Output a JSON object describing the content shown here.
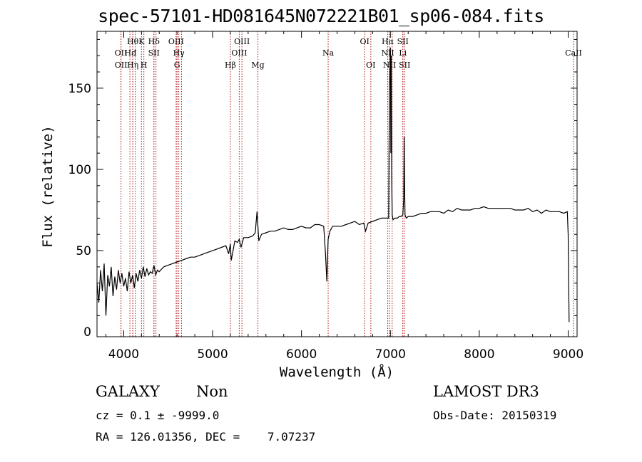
{
  "title": "spec-57101-HD081645N072221B01_sp06-084.fits",
  "info": {
    "class_label": "GALAXY",
    "subclass_label": "Non",
    "survey_label": "LAMOST DR3",
    "cz_line": "cz = 0.1 ± -9999.0",
    "obs_date_line": "Obs-Date: 20150319",
    "radec_line": "RA = 126.01356, DEC =    7.07237"
  },
  "chart_data": {
    "type": "line",
    "title": "spec-57101-HD081645N072221B01_sp06-084.fits",
    "xlabel": "Wavelength (Å)",
    "ylabel": "Flux (relative)",
    "xlim": [
      3700,
      9100
    ],
    "ylim": [
      -3,
      185
    ],
    "xticks": [
      4000,
      5000,
      6000,
      7000,
      8000,
      9000
    ],
    "yticks": [
      0,
      50,
      100,
      150
    ],
    "grid": false,
    "line_color": "#000000",
    "marker_color": "#b22222",
    "series": [
      {
        "x": [
          3700,
          3720,
          3740,
          3760,
          3780,
          3800,
          3820,
          3840,
          3860,
          3880,
          3900,
          3920,
          3940,
          3960,
          3980,
          4000,
          4020,
          4040,
          4060,
          4080,
          4100,
          4120,
          4140,
          4160,
          4180,
          4200,
          4220,
          4240,
          4260,
          4280,
          4300,
          4320,
          4340,
          4360,
          4380,
          4400,
          4450,
          4500,
          4550,
          4600,
          4650,
          4700,
          4750,
          4800,
          4850,
          4900,
          4950,
          5000,
          5050,
          5100,
          5150,
          5180,
          5200,
          5210,
          5250,
          5280,
          5300,
          5320,
          5350,
          5400,
          5450,
          5480,
          5500,
          5520,
          5550,
          5600,
          5650,
          5700,
          5750,
          5800,
          5850,
          5900,
          5950,
          6000,
          6050,
          6100,
          6150,
          6200,
          6250,
          6270,
          6285,
          6300,
          6320,
          6350,
          6400,
          6450,
          6500,
          6550,
          6600,
          6650,
          6700,
          6720,
          6750,
          6800,
          6850,
          6900,
          6950,
          6980,
          6985,
          6990,
          7000,
          7005,
          7010,
          7015,
          7020,
          7030,
          7050,
          7080,
          7100,
          7120,
          7140,
          7150,
          7155,
          7160,
          7165,
          7170,
          7180,
          7200,
          7250,
          7300,
          7350,
          7400,
          7450,
          7500,
          7550,
          7600,
          7650,
          7700,
          7750,
          7800,
          7850,
          7900,
          7950,
          8000,
          8050,
          8100,
          8150,
          8200,
          8250,
          8300,
          8350,
          8400,
          8450,
          8500,
          8550,
          8600,
          8650,
          8700,
          8750,
          8800,
          8850,
          8900,
          8950,
          8990,
          9000,
          9010
        ],
        "y": [
          30,
          18,
          38,
          25,
          42,
          10,
          35,
          28,
          40,
          22,
          34,
          26,
          38,
          30,
          36,
          28,
          33,
          25,
          37,
          30,
          35,
          27,
          36,
          31,
          38,
          33,
          40,
          34,
          39,
          35,
          37,
          36,
          41,
          35,
          38,
          37,
          40,
          41,
          42,
          43,
          44,
          45,
          46,
          46,
          47,
          48,
          49,
          50,
          51,
          52,
          53,
          48,
          54,
          44,
          56,
          55,
          57,
          52,
          58,
          58,
          59,
          61,
          74,
          56,
          60,
          61,
          62,
          62,
          63,
          64,
          63,
          63,
          64,
          65,
          64,
          64,
          66,
          66,
          65,
          48,
          31,
          57,
          62,
          65,
          65,
          65,
          66,
          67,
          68,
          66,
          67,
          62,
          67,
          68,
          69,
          70,
          70,
          70,
          112,
          150,
          175,
          110,
          170,
          95,
          72,
          69,
          70,
          70,
          71,
          71,
          72,
          82,
          120,
          90,
          72,
          71,
          70,
          71,
          71,
          72,
          73,
          73,
          74,
          74,
          74,
          73,
          75,
          74,
          76,
          75,
          75,
          75,
          76,
          76,
          77,
          76,
          76,
          76,
          76,
          76,
          76,
          75,
          75,
          75,
          76,
          74,
          75,
          73,
          75,
          74,
          74,
          74,
          73,
          74,
          60,
          6
        ]
      }
    ],
    "line_markers": [
      {
        "x": 3969,
        "label": "OII",
        "row": 1
      },
      {
        "x": 3970,
        "label": "OII",
        "row": 2
      },
      {
        "x": 4102,
        "label": "Hθ",
        "row": 0
      },
      {
        "x": 4070,
        "label": "Hε",
        "row": 1
      },
      {
        "x": 4102,
        "label": "Hη",
        "row": 2
      },
      {
        "x": 4130,
        "label": "I",
        "row": 1
      },
      {
        "x": 4200,
        "label": "K",
        "row": 0
      },
      {
        "x": 4227,
        "label": "H",
        "row": 2
      },
      {
        "x": 4340,
        "label": "Hδ",
        "row": 0
      },
      {
        "x": 4340,
        "label": "SII",
        "row": 1
      },
      {
        "x": 4363,
        "label": "",
        "row": 0
      },
      {
        "x": 4590,
        "label": "OIII",
        "row": 0
      },
      {
        "x": 4620,
        "label": "Hγ",
        "row": 1
      },
      {
        "x": 4600,
        "label": "G",
        "row": 2
      },
      {
        "x": 4650,
        "label": "",
        "row": 0
      },
      {
        "x": 5200,
        "label": "Hβ",
        "row": 2
      },
      {
        "x": 5330,
        "label": "OIII",
        "row": 0
      },
      {
        "x": 5300,
        "label": "OIII",
        "row": 1
      },
      {
        "x": 5510,
        "label": "Mg",
        "row": 2
      },
      {
        "x": 6300,
        "label": "Na",
        "row": 1
      },
      {
        "x": 6710,
        "label": "OI",
        "row": 0
      },
      {
        "x": 6780,
        "label": "OI",
        "row": 2
      },
      {
        "x": 6970,
        "label": "Hα",
        "row": 0
      },
      {
        "x": 6970,
        "label": "NII",
        "row": 1
      },
      {
        "x": 6990,
        "label": "NII",
        "row": 2
      },
      {
        "x": 7020,
        "label": "",
        "row": 0
      },
      {
        "x": 7140,
        "label": "SII",
        "row": 0
      },
      {
        "x": 7140,
        "label": "Li",
        "row": 1
      },
      {
        "x": 7160,
        "label": "SII",
        "row": 2
      },
      {
        "x": 9060,
        "label": "CaII",
        "row": 1
      }
    ]
  }
}
